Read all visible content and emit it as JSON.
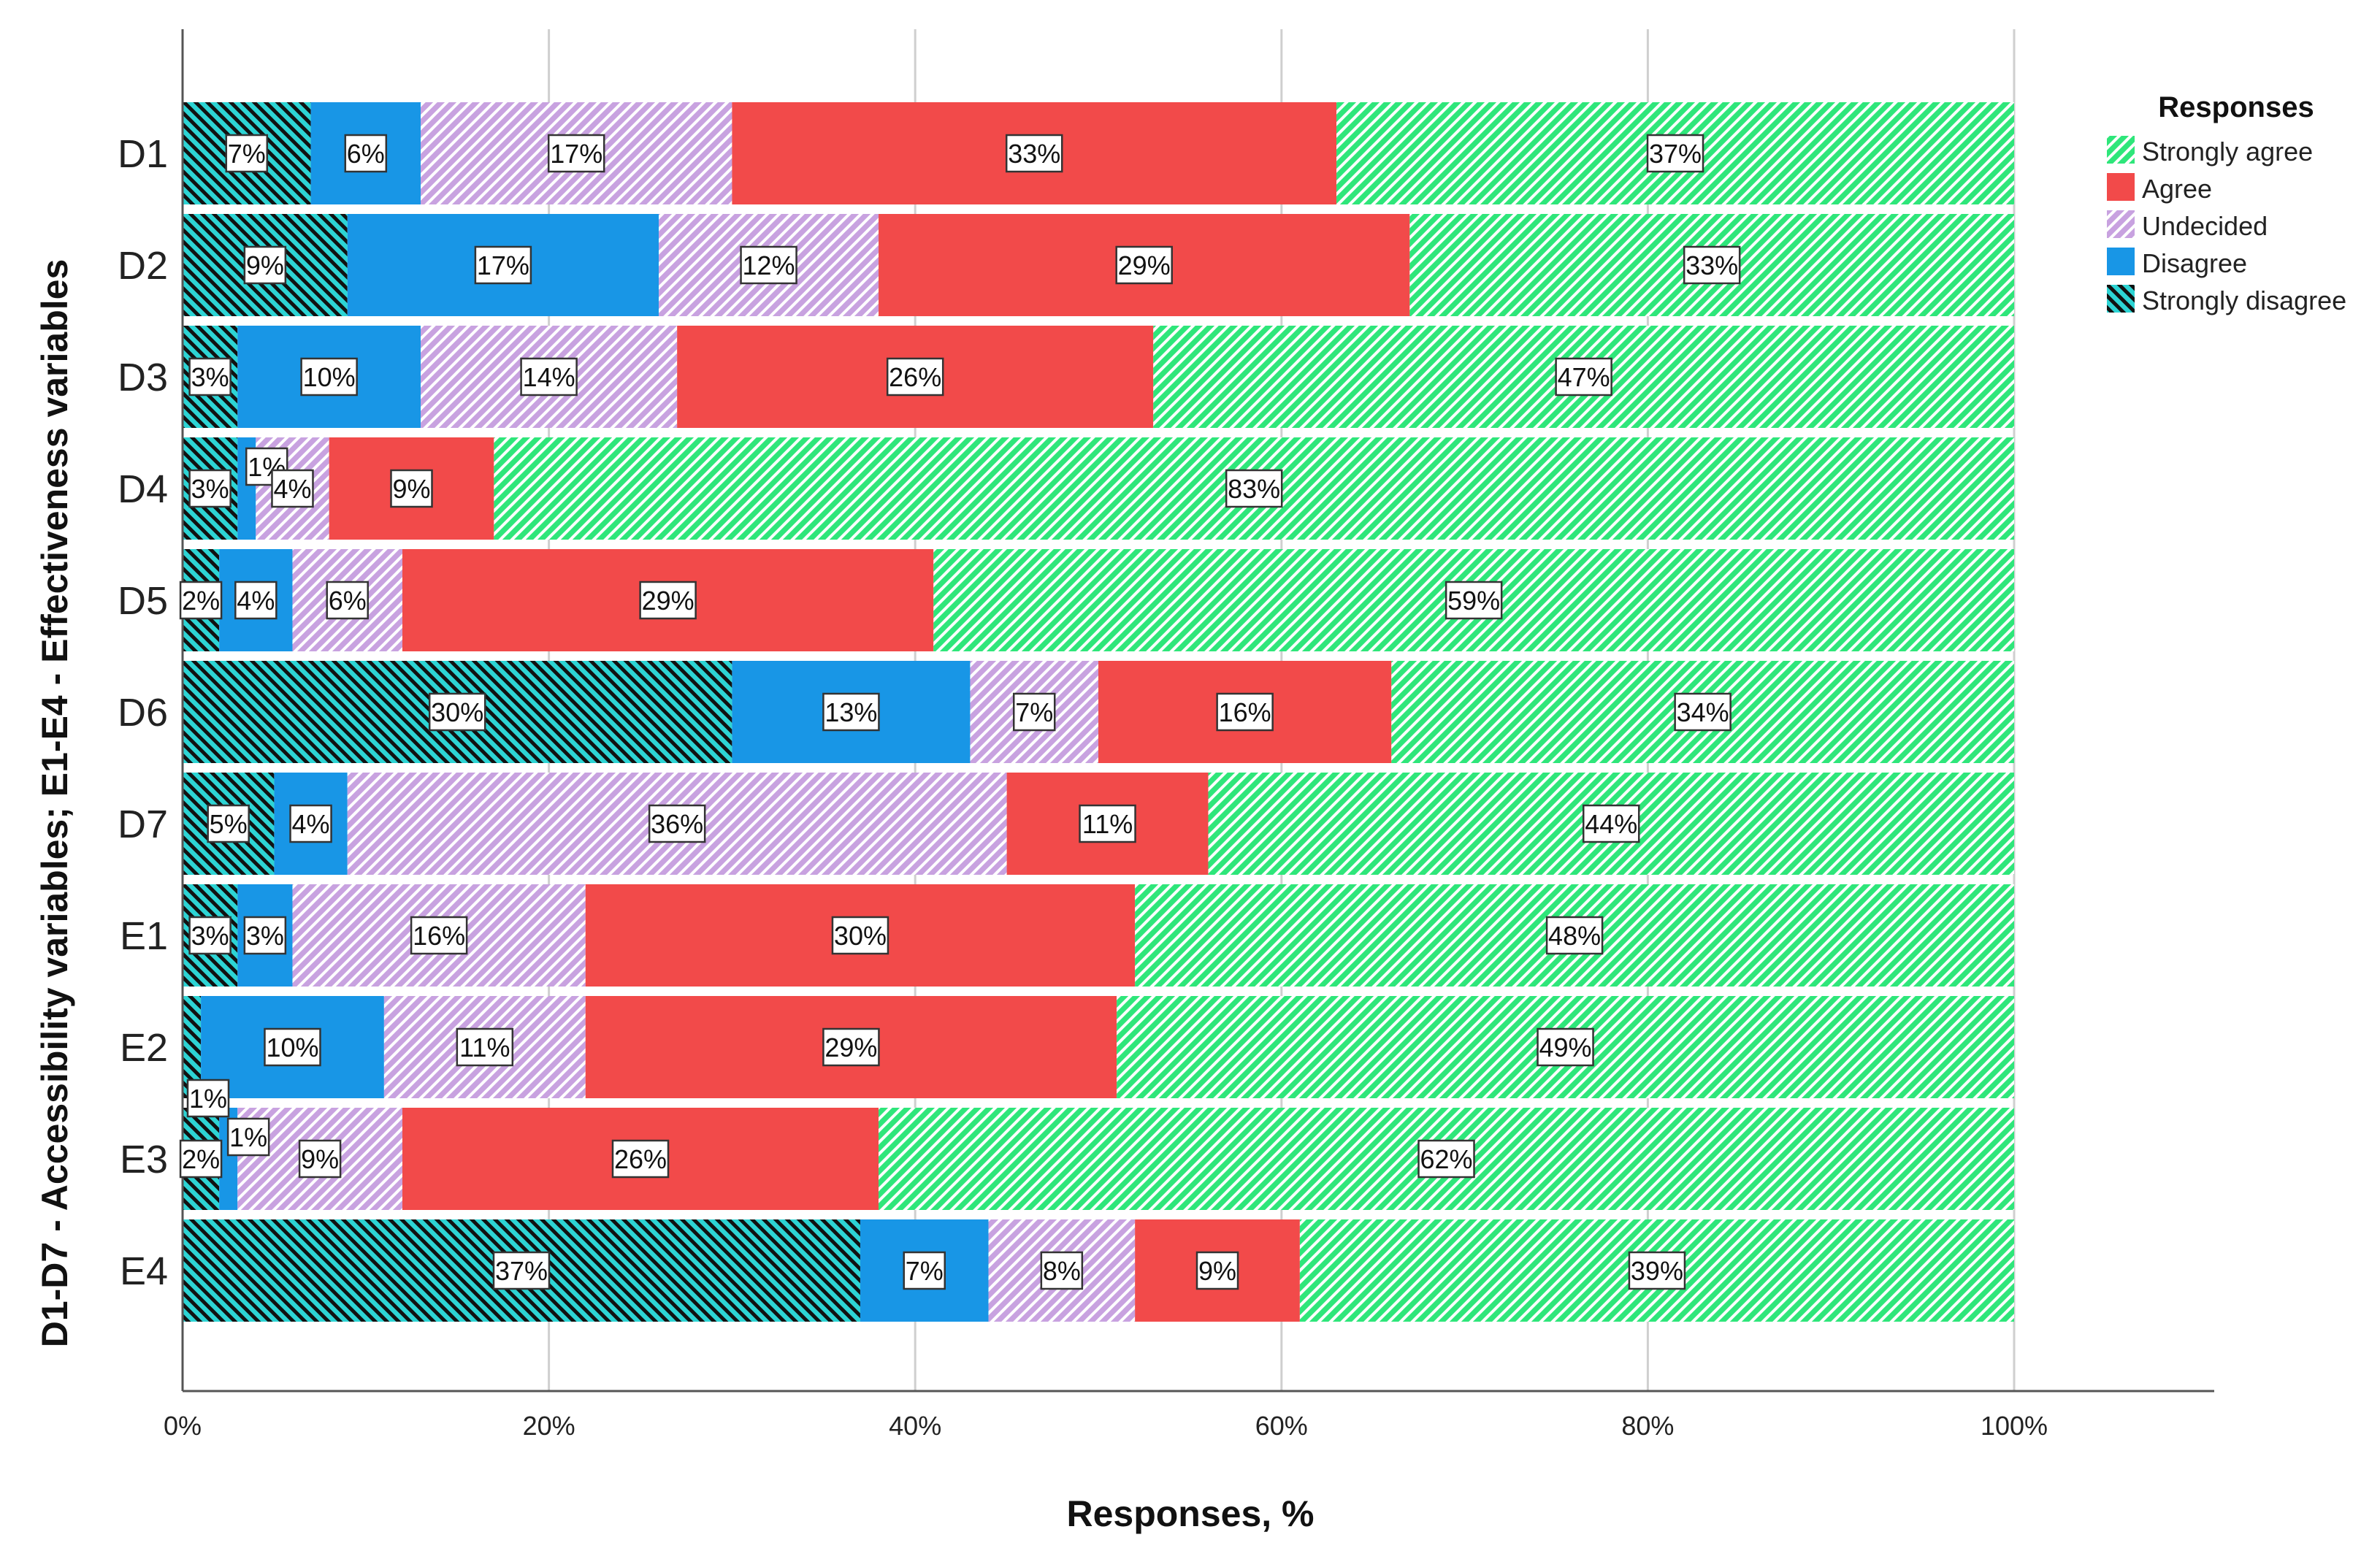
{
  "chart_data": {
    "type": "bar",
    "orientation": "horizontal",
    "stacked": true,
    "xlabel": "Responses, %",
    "ylabel": "D1-D7 - Accessibility variables; E1-E4 - Effectiveness variables",
    "xlim": [
      0,
      100
    ],
    "x_ticks": [
      "0%",
      "20%",
      "40%",
      "60%",
      "80%",
      "100%"
    ],
    "grid": "vertical",
    "categories": [
      "D1",
      "D2",
      "D3",
      "D4",
      "D5",
      "D6",
      "D7",
      "E1",
      "E2",
      "E3",
      "E4"
    ],
    "series": [
      {
        "name": "Strongly disagree",
        "color": "#2dd4d4",
        "pattern": "backslash-hatch",
        "values": [
          7,
          9,
          3,
          3,
          2,
          30,
          5,
          3,
          1,
          2,
          37
        ],
        "labels": [
          "7%",
          "9%",
          "3%",
          "3%",
          "2%",
          "30%",
          "5%",
          "3%",
          "1%",
          "2%",
          "37%"
        ]
      },
      {
        "name": "Disagree",
        "color": "#1896e6",
        "pattern": "solid",
        "values": [
          6,
          17,
          10,
          1,
          4,
          13,
          4,
          3,
          10,
          1,
          7
        ],
        "labels": [
          "6%",
          "17%",
          "10%",
          "1%",
          "4%",
          "13%",
          "4%",
          "3%",
          "10%",
          "1%",
          "7%"
        ]
      },
      {
        "name": "Undecided",
        "color": "#c8a2e0",
        "pattern": "slash-hatch",
        "values": [
          17,
          12,
          14,
          4,
          6,
          7,
          36,
          16,
          11,
          9,
          8
        ],
        "labels": [
          "17%",
          "12%",
          "14%",
          "4%",
          "6%",
          "7%",
          "36%",
          "16%",
          "11%",
          "9%",
          "8%"
        ]
      },
      {
        "name": "Agree",
        "color": "#f24a4a",
        "pattern": "solid",
        "values": [
          33,
          29,
          26,
          9,
          29,
          16,
          11,
          30,
          29,
          26,
          9
        ],
        "labels": [
          "33%",
          "29%",
          "26%",
          "9%",
          "29%",
          "16%",
          "11%",
          "30%",
          "29%",
          "26%",
          "9%"
        ]
      },
      {
        "name": "Strongly agree",
        "color": "#2ee67a",
        "pattern": "slash-hatch",
        "values": [
          37,
          33,
          47,
          83,
          59,
          34,
          44,
          48,
          49,
          62,
          39
        ],
        "labels": [
          "37%",
          "33%",
          "47%",
          "83%",
          "59%",
          "34%",
          "44%",
          "48%",
          "49%",
          "62%",
          "39%"
        ]
      }
    ],
    "legend": {
      "title": "Responses",
      "position": "top-right",
      "order": [
        "Strongly agree",
        "Agree",
        "Undecided",
        "Disagree",
        "Strongly disagree"
      ]
    }
  }
}
